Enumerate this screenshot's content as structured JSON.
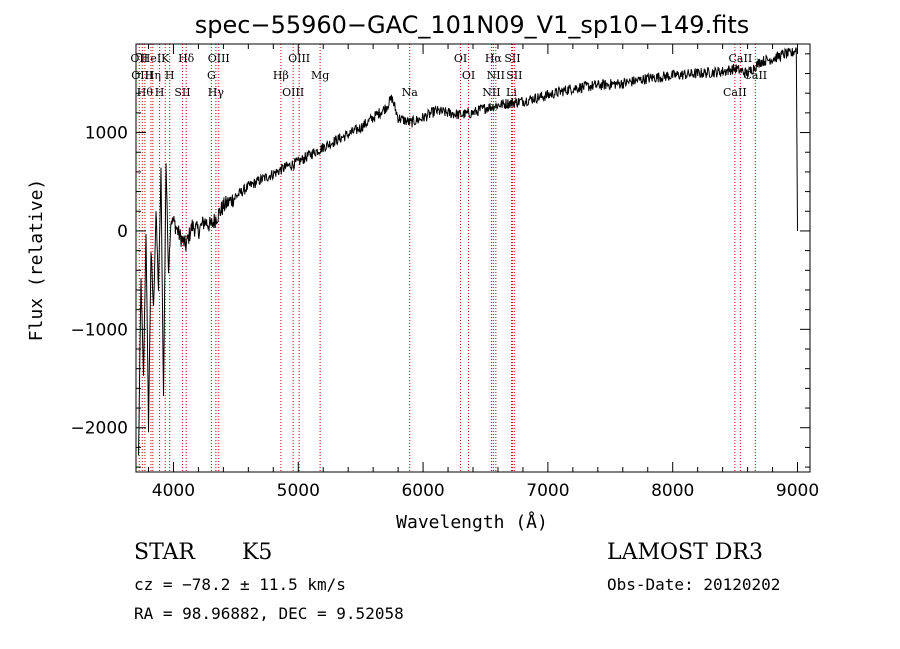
{
  "chart_data": {
    "type": "line",
    "title": "spec−55960−GAC_101N09_V1_sp10−149.fits",
    "xlabel": "Wavelength (Å)",
    "ylabel": "Flux (relative)",
    "xlim": [
      3700,
      9100
    ],
    "ylim": [
      -2450,
      1900
    ],
    "x_ticks": [
      4000,
      5000,
      6000,
      7000,
      8000,
      9000
    ],
    "y_ticks": [
      -2000,
      -1000,
      0,
      1000
    ],
    "x_tick_labels": [
      "4000",
      "5000",
      "6000",
      "7000",
      "8000",
      "9000"
    ],
    "y_tick_labels": [
      "−2000",
      "−1000",
      "0",
      "1000"
    ],
    "line_color": "#000000",
    "marker_color": "#cc0000",
    "series": [
      {
        "name": "spectrum",
        "x": [
          3720,
          3740,
          3760,
          3780,
          3800,
          3820,
          3840,
          3860,
          3880,
          3900,
          3920,
          3940,
          3960,
          3980,
          4000,
          4050,
          4100,
          4150,
          4200,
          4250,
          4300,
          4350,
          4400,
          4500,
          4600,
          4700,
          4800,
          4900,
          5000,
          5100,
          5200,
          5300,
          5400,
          5500,
          5600,
          5700,
          5750,
          5800,
          5900,
          6000,
          6100,
          6200,
          6300,
          6400,
          6500,
          6600,
          6700,
          6800,
          6900,
          7000,
          7200,
          7400,
          7600,
          7800,
          8000,
          8200,
          8400,
          8500,
          8600,
          8700,
          8800,
          8900,
          8950,
          8990,
          9000
        ],
        "y": [
          -2300,
          -500,
          -1500,
          0,
          -2000,
          -200,
          -800,
          200,
          -600,
          600,
          -1700,
          700,
          -400,
          100,
          100,
          -50,
          -150,
          50,
          0,
          100,
          50,
          150,
          250,
          350,
          450,
          520,
          580,
          650,
          700,
          780,
          850,
          920,
          980,
          1050,
          1150,
          1250,
          1350,
          1150,
          1100,
          1150,
          1220,
          1200,
          1180,
          1200,
          1250,
          1280,
          1300,
          1320,
          1350,
          1380,
          1450,
          1480,
          1500,
          1550,
          1580,
          1600,
          1620,
          1650,
          1600,
          1720,
          1750,
          1800,
          1800,
          1850,
          0
        ]
      }
    ],
    "lines": [
      {
        "x": 3726,
        "label": "OII"
      },
      {
        "x": 3750,
        "label": "OIII"
      },
      {
        "x": 3771,
        "label": "Hθ"
      },
      {
        "x": 3820,
        "label": "HeI"
      },
      {
        "x": 3835,
        "label": "Hη"
      },
      {
        "x": 3889,
        "label": "H"
      },
      {
        "x": 3934,
        "label": "K"
      },
      {
        "x": 3970,
        "label": "H"
      },
      {
        "x": 4072,
        "label": "SII"
      },
      {
        "x": 4102,
        "label": "Hδ"
      },
      {
        "x": 4304,
        "label": "G"
      },
      {
        "x": 4340,
        "label": "Hγ"
      },
      {
        "x": 4363,
        "label": "OIII"
      },
      {
        "x": 4861,
        "label": "Hβ"
      },
      {
        "x": 4959,
        "label": "OIII"
      },
      {
        "x": 5007,
        "label": "OIII"
      },
      {
        "x": 5175,
        "label": "Mg"
      },
      {
        "x": 5893,
        "label": "Na"
      },
      {
        "x": 6300,
        "label": "OI"
      },
      {
        "x": 6364,
        "label": "OI"
      },
      {
        "x": 6548,
        "label": "NII"
      },
      {
        "x": 6563,
        "label": "Hα"
      },
      {
        "x": 6583,
        "label": "NII"
      },
      {
        "x": 6708,
        "label": "Li"
      },
      {
        "x": 6716,
        "label": "SII"
      },
      {
        "x": 6731,
        "label": "SII"
      },
      {
        "x": 8498,
        "label": "CaII"
      },
      {
        "x": 8542,
        "label": "CaII"
      },
      {
        "x": 8662,
        "label": "CaII"
      }
    ]
  },
  "info": {
    "class": "STAR",
    "subclass": "K5",
    "survey": "LAMOST DR3",
    "cz": "cz = −78.2 ± 11.5 km/s",
    "obs_date": "Obs-Date: 20120202",
    "coords": "RA =  98.96882, DEC =   9.52058"
  }
}
